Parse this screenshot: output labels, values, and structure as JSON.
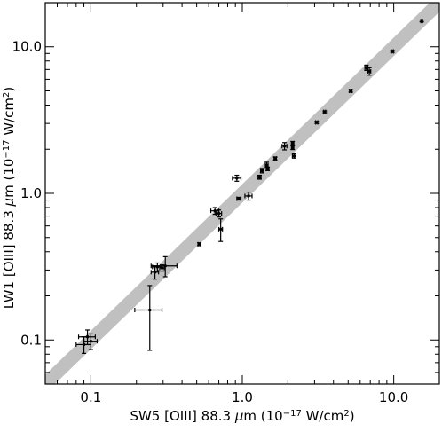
{
  "chart_data": {
    "type": "scatter",
    "title": "",
    "xlabel": {
      "pre": "SW5 [OIII] 88.3 ",
      "mu": "μ",
      "mid": "m (10",
      "sup1": "−17",
      "mid2": " W/cm",
      "sup2": "2",
      "post": ")"
    },
    "ylabel": {
      "pre": "LW1 [OIII] 88.3 ",
      "mu": "μ",
      "mid": "m (10",
      "sup1": "−17",
      "mid2": " W/cm",
      "sup2": "2",
      "post": ")"
    },
    "x_scale": "log",
    "y_scale": "log",
    "xlim": [
      0.05,
      20
    ],
    "ylim": [
      0.05,
      20
    ],
    "xticks": [
      {
        "value": 0.1,
        "label": "0.1"
      },
      {
        "value": 1.0,
        "label": "1.0"
      },
      {
        "value": 10.0,
        "label": "10.0"
      }
    ],
    "yticks": [
      {
        "value": 0.1,
        "label": "0.1"
      },
      {
        "value": 1.0,
        "label": "1.0"
      },
      {
        "value": 10.0,
        "label": "10.0"
      }
    ],
    "one_to_one_band": {
      "color": "#c0c0c0",
      "description": "y = x band"
    },
    "marker_color": "#000000",
    "points": [
      {
        "x": 0.09,
        "y": 0.093,
        "xerr": 0.01,
        "yerr": 0.012
      },
      {
        "x": 0.095,
        "y": 0.105,
        "xerr": 0.012,
        "yerr": 0.012
      },
      {
        "x": 0.1,
        "y": 0.098,
        "xerr": 0.01,
        "yerr": 0.012
      },
      {
        "x": 0.245,
        "y": 0.16,
        "xerr": 0.05,
        "yerr": 0.075
      },
      {
        "x": 0.265,
        "y": 0.29,
        "xerr": 0.015,
        "yerr": 0.03
      },
      {
        "x": 0.275,
        "y": 0.315,
        "xerr": 0.02,
        "yerr": 0.02
      },
      {
        "x": 0.295,
        "y": 0.31,
        "xerr": 0.01,
        "yerr": 0.015
      },
      {
        "x": 0.31,
        "y": 0.32,
        "xerr": 0.06,
        "yerr": 0.05
      },
      {
        "x": 0.52,
        "y": 0.45,
        "xerr": 0.01,
        "yerr": 0.01
      },
      {
        "x": 0.66,
        "y": 0.76,
        "xerr": 0.04,
        "yerr": 0.04
      },
      {
        "x": 0.7,
        "y": 0.73,
        "xerr": 0.03,
        "yerr": 0.04
      },
      {
        "x": 0.72,
        "y": 0.57,
        "xerr": 0.02,
        "yerr": 0.1
      },
      {
        "x": 0.92,
        "y": 1.27,
        "xerr": 0.06,
        "yerr": 0.06
      },
      {
        "x": 0.95,
        "y": 0.92,
        "xerr": 0.03,
        "yerr": 0.02
      },
      {
        "x": 1.1,
        "y": 0.96,
        "xerr": 0.06,
        "yerr": 0.06
      },
      {
        "x": 1.3,
        "y": 1.29,
        "xerr": 0.03,
        "yerr": 0.04
      },
      {
        "x": 1.35,
        "y": 1.43,
        "xerr": 0.03,
        "yerr": 0.05
      },
      {
        "x": 1.45,
        "y": 1.55,
        "xerr": 0.03,
        "yerr": 0.08
      },
      {
        "x": 1.47,
        "y": 1.47,
        "xerr": 0.03,
        "yerr": 0.04
      },
      {
        "x": 1.65,
        "y": 1.73,
        "xerr": 0.03,
        "yerr": 0.04
      },
      {
        "x": 1.9,
        "y": 2.1,
        "xerr": 0.07,
        "yerr": 0.12
      },
      {
        "x": 2.15,
        "y": 2.2,
        "xerr": 0.04,
        "yerr": 0.06
      },
      {
        "x": 2.15,
        "y": 2.05,
        "xerr": 0.04,
        "yerr": 0.06
      },
      {
        "x": 2.2,
        "y": 1.8,
        "xerr": 0.06,
        "yerr": 0.06
      },
      {
        "x": 3.1,
        "y": 3.05,
        "xerr": 0.05,
        "yerr": 0.05
      },
      {
        "x": 3.5,
        "y": 3.6,
        "xerr": 0.05,
        "yerr": 0.05
      },
      {
        "x": 5.2,
        "y": 5.0,
        "xerr": 0.1,
        "yerr": 0.1
      },
      {
        "x": 6.6,
        "y": 7.2,
        "xerr": 0.15,
        "yerr": 0.3
      },
      {
        "x": 6.9,
        "y": 6.8,
        "xerr": 0.15,
        "yerr": 0.4
      },
      {
        "x": 9.8,
        "y": 9.3,
        "xerr": 0.15,
        "yerr": 0.15
      },
      {
        "x": 15.3,
        "y": 15.0,
        "xerr": 0.2,
        "yerr": 0.2
      }
    ],
    "grid": false,
    "legend": "none"
  }
}
